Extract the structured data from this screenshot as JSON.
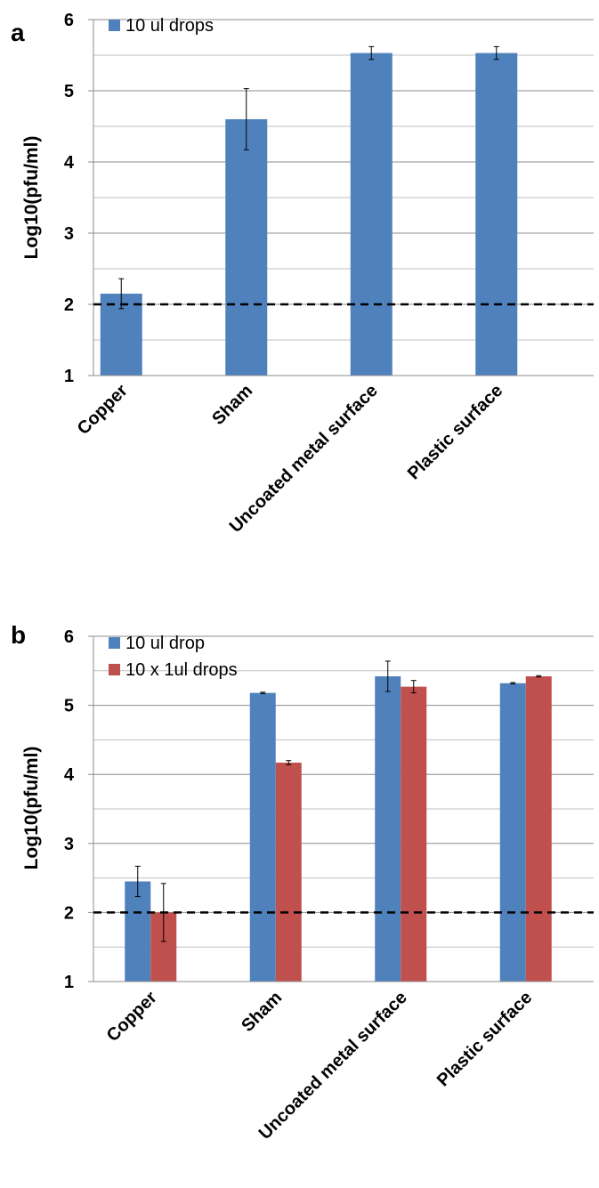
{
  "chart_data": [
    {
      "panel": "a",
      "type": "bar",
      "title": "",
      "xlabel": "",
      "ylabel": "Log10(pfu/ml)",
      "ylim": [
        1,
        6
      ],
      "yticks": [
        "1",
        "2",
        "3",
        "4",
        "5",
        "6"
      ],
      "grid": true,
      "legend_position": "top-left",
      "reference_line": {
        "y": 2,
        "style": "dashed"
      },
      "categories": [
        "Copper",
        "Sham",
        "Uncoated metal surface",
        "Plastic surface"
      ],
      "series": [
        {
          "name": "10 ul drops",
          "color": "#4F81BD",
          "values": [
            2.15,
            4.6,
            5.53,
            5.53
          ],
          "errors": [
            0.21,
            0.43,
            0.09,
            0.09
          ]
        }
      ]
    },
    {
      "panel": "b",
      "type": "bar",
      "title": "",
      "xlabel": "",
      "ylabel": "Log10(pfu/ml)",
      "ylim": [
        1,
        6
      ],
      "yticks": [
        "1",
        "2",
        "3",
        "4",
        "5",
        "6"
      ],
      "grid": true,
      "legend_position": "top-left",
      "reference_line": {
        "y": 2,
        "style": "dashed"
      },
      "categories": [
        "Copper",
        "Sham",
        "Uncoated metal surface",
        "Plastic surface"
      ],
      "series": [
        {
          "name": "10 ul drop",
          "color": "#4F81BD",
          "values": [
            2.45,
            5.18,
            5.42,
            5.32
          ],
          "errors": [
            0.22,
            0.01,
            0.22,
            0.01
          ]
        },
        {
          "name": "10 x 1ul drops",
          "color": "#C0504D",
          "values": [
            2.0,
            4.17,
            5.27,
            5.42
          ],
          "errors": [
            0.42,
            0.03,
            0.09,
            0.01
          ]
        }
      ]
    }
  ]
}
